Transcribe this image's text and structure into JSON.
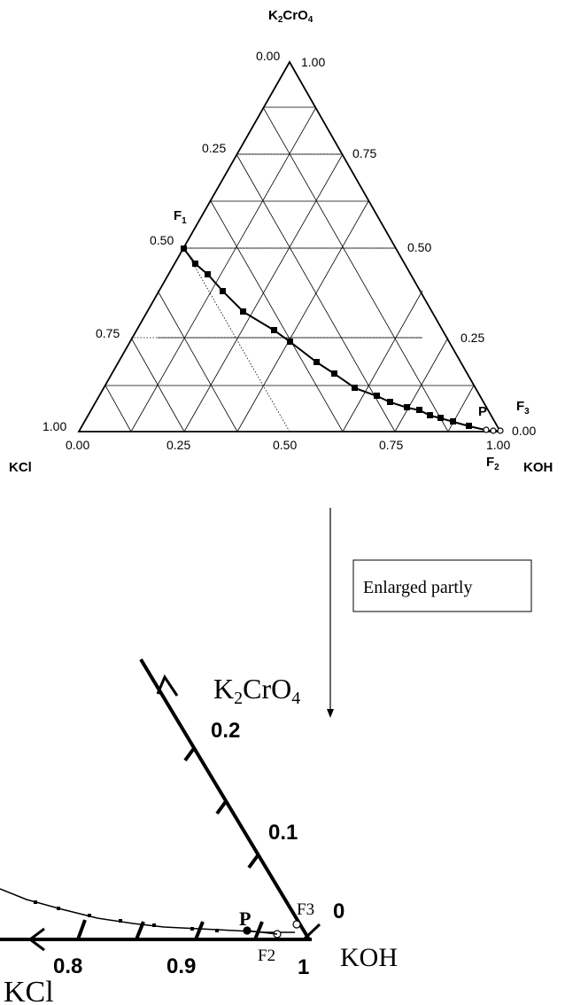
{
  "diagram": {
    "top": {
      "vertices": {
        "top_main": "K",
        "top_sub1": "2",
        "top_mid": "CrO",
        "top_sub2": "4",
        "left": "KCl",
        "right": "KOH"
      },
      "left_edge_ticks": [
        "0.00",
        "0.25",
        "0.50",
        "0.75",
        "1.00"
      ],
      "right_edge_ticks": [
        "1.00",
        "0.75",
        "0.50",
        "0.25",
        "0.00"
      ],
      "bottom_edge_ticks": [
        "0.00",
        "0.25",
        "0.50",
        "0.75",
        "1.00"
      ],
      "points": {
        "F1_main": "F",
        "F1_sub": "1",
        "F2_main": "F",
        "F2_sub": "2",
        "F3_main": "F",
        "F3_sub": "3",
        "P": "P"
      }
    },
    "arrow_label": "Enlarged partly",
    "zoom": {
      "vertex_main": "K",
      "vertex_sub1": "2",
      "vertex_mid": "CrO",
      "vertex_sub2": "4",
      "koh": "KOH",
      "kcl": "KCl",
      "right_ticks": [
        "0.2",
        "0.1",
        "0"
      ],
      "bottom_ticks": [
        "0.8",
        "0.9",
        "1"
      ],
      "points": {
        "F3": "F3",
        "F2": "F2",
        "P": "P"
      }
    }
  }
}
